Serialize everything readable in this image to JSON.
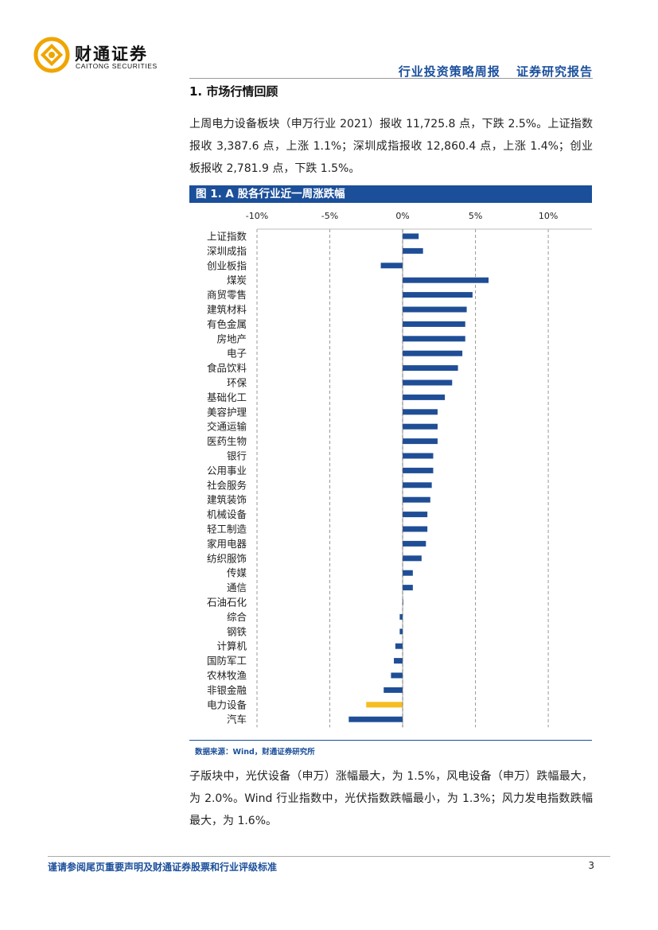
{
  "header": {
    "brand_cn": "财通证券",
    "brand_en": "CAITONG SECURITIES",
    "report_type": "行业投资策略周报",
    "report_kind": "证券研究报告"
  },
  "section": {
    "title": "1.  市场行情回顾"
  },
  "paragraph1": "上周电力设备板块（申万行业 2021）报收 11,725.8 点，下跌 2.5%。上证指数报收 3,387.6 点，上涨 1.1%；深圳成指报收 12,860.4 点，上涨 1.4%；创业板报收 2,781.9 点，下跌 1.5%。",
  "figure": {
    "title": "图 1. A 股各行业近一周涨跌幅",
    "source": "数据来源：Wind，财通证券研究所"
  },
  "paragraph2": "子版块中，光伏设备（申万）涨幅最大，为 1.5%，风电设备（申万）跌幅最大，为 2.0%。Wind 行业指数中，光伏指数跌幅最小，为 1.3%；风力发电指数跌幅最大，为 1.6%。",
  "footer": {
    "disclaimer": "谨请参阅尾页重要声明及财通证券股票和行业评级标准",
    "page": "3"
  },
  "colors": {
    "brand_blue": "#1b4f9a",
    "bar_default": "#1f4e96",
    "bar_highlight": "#f5bd1f",
    "logo_orange": "#f0a500"
  },
  "chart_data": {
    "type": "bar",
    "orientation": "horizontal",
    "title": "",
    "xlabel": "",
    "ylabel": "",
    "xlim": [
      -10,
      13
    ],
    "ticks": [
      -10,
      -5,
      0,
      5,
      10
    ],
    "tick_labels": [
      "-10%",
      "-5%",
      "0%",
      "5%",
      "10%"
    ],
    "grid": "vertical dashed",
    "highlight": "电力设备",
    "categories": [
      "上证指数",
      "深圳成指",
      "创业板指",
      "煤炭",
      "商贸零售",
      "建筑材料",
      "有色金属",
      "房地产",
      "电子",
      "食品饮料",
      "环保",
      "基础化工",
      "美容护理",
      "交通运输",
      "医药生物",
      "银行",
      "公用事业",
      "社会服务",
      "建筑装饰",
      "机械设备",
      "轻工制造",
      "家用电器",
      "纺织服饰",
      "传媒",
      "通信",
      "石油石化",
      "综合",
      "钢铁",
      "计算机",
      "国防军工",
      "农林牧渔",
      "非银金融",
      "电力设备",
      "汽车"
    ],
    "values": [
      1.1,
      1.4,
      -1.5,
      5.9,
      4.8,
      4.4,
      4.3,
      4.3,
      4.1,
      3.8,
      3.4,
      2.9,
      2.4,
      2.4,
      2.4,
      2.1,
      2.1,
      2.0,
      1.9,
      1.7,
      1.7,
      1.6,
      1.3,
      0.7,
      0.7,
      0.0,
      -0.2,
      -0.2,
      -0.5,
      -0.6,
      -0.8,
      -1.3,
      -2.5,
      -3.7
    ]
  }
}
